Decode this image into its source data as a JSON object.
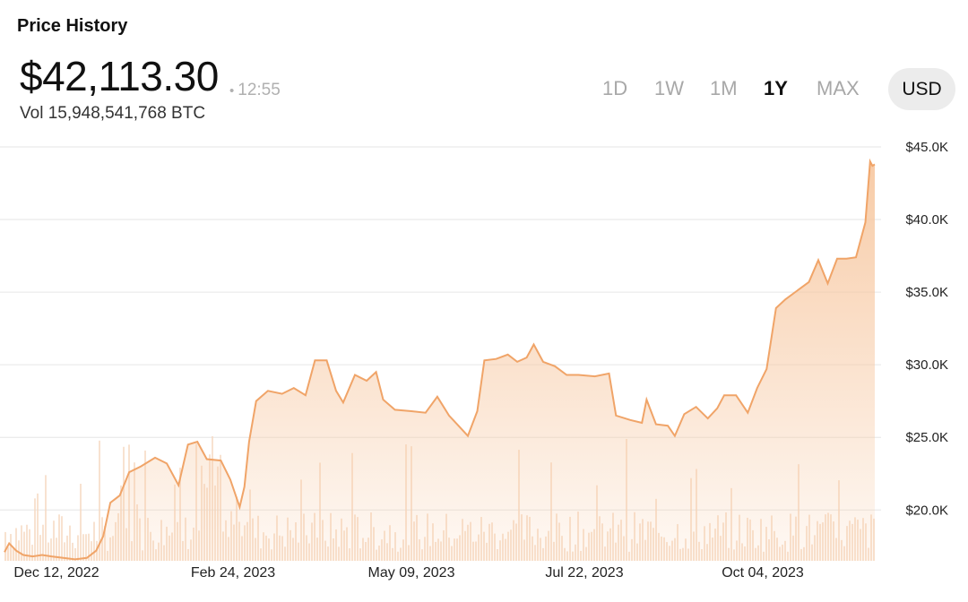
{
  "header": {
    "title": "Price History",
    "price": "$42,113.30",
    "time": "12:55",
    "time_dot": "•",
    "volume": "Vol 15,948,541,768 BTC"
  },
  "ranges": [
    {
      "label": "1D",
      "active": false
    },
    {
      "label": "1W",
      "active": false
    },
    {
      "label": "1M",
      "active": false
    },
    {
      "label": "1Y",
      "active": true
    },
    {
      "label": "MAX",
      "active": false
    }
  ],
  "currency": "USD",
  "colors": {
    "line": "#f0a468",
    "fill_top": "#f7c9a3",
    "volume": "#f6d8c0",
    "grid": "#e6e6e6"
  },
  "chart_data": {
    "type": "area",
    "title": "",
    "xlabel": "",
    "ylabel": "",
    "ylim": [
      16500,
      45000
    ],
    "xlim": [
      "2022-11-30",
      "2023-12-05"
    ],
    "y_ticks": [
      "$20.0K",
      "$25.0K",
      "$30.0K",
      "$35.0K",
      "$40.0K",
      "$45.0K"
    ],
    "x_ticks": [
      "Dec 12, 2022",
      "Feb 24, 2023",
      "May 09, 2023",
      "Jul 22, 2023",
      "Oct 04, 2023"
    ],
    "grid": true,
    "series": [
      {
        "values": [
          [
            "2022-11-30",
            17100
          ],
          [
            "2022-12-02",
            17700
          ],
          [
            "2022-12-05",
            17200
          ],
          [
            "2022-12-08",
            16900
          ],
          [
            "2022-12-12",
            16800
          ],
          [
            "2022-12-16",
            16900
          ],
          [
            "2022-12-20",
            16800
          ],
          [
            "2022-12-25",
            16700
          ],
          [
            "2022-12-30",
            16600
          ],
          [
            "2023-01-04",
            16700
          ],
          [
            "2023-01-08",
            17200
          ],
          [
            "2023-01-11",
            18200
          ],
          [
            "2023-01-14",
            20500
          ],
          [
            "2023-01-18",
            21000
          ],
          [
            "2023-01-22",
            22600
          ],
          [
            "2023-01-27",
            23000
          ],
          [
            "2023-02-02",
            23600
          ],
          [
            "2023-02-07",
            23200
          ],
          [
            "2023-02-12",
            21700
          ],
          [
            "2023-02-16",
            24500
          ],
          [
            "2023-02-20",
            24700
          ],
          [
            "2023-02-24",
            23500
          ],
          [
            "2023-03-02",
            23400
          ],
          [
            "2023-03-06",
            22100
          ],
          [
            "2023-03-10",
            20200
          ],
          [
            "2023-03-12",
            21600
          ],
          [
            "2023-03-14",
            24700
          ],
          [
            "2023-03-17",
            27500
          ],
          [
            "2023-03-22",
            28200
          ],
          [
            "2023-03-28",
            28000
          ],
          [
            "2023-04-02",
            28400
          ],
          [
            "2023-04-07",
            27900
          ],
          [
            "2023-04-11",
            30300
          ],
          [
            "2023-04-16",
            30300
          ],
          [
            "2023-04-20",
            28200
          ],
          [
            "2023-04-23",
            27400
          ],
          [
            "2023-04-28",
            29300
          ],
          [
            "2023-05-03",
            28900
          ],
          [
            "2023-05-07",
            29500
          ],
          [
            "2023-05-10",
            27600
          ],
          [
            "2023-05-15",
            26900
          ],
          [
            "2023-05-22",
            26800
          ],
          [
            "2023-05-28",
            26700
          ],
          [
            "2023-06-02",
            27800
          ],
          [
            "2023-06-07",
            26500
          ],
          [
            "2023-06-11",
            25800
          ],
          [
            "2023-06-15",
            25100
          ],
          [
            "2023-06-19",
            26800
          ],
          [
            "2023-06-22",
            30300
          ],
          [
            "2023-06-27",
            30400
          ],
          [
            "2023-07-02",
            30700
          ],
          [
            "2023-07-06",
            30200
          ],
          [
            "2023-07-10",
            30500
          ],
          [
            "2023-07-13",
            31400
          ],
          [
            "2023-07-17",
            30200
          ],
          [
            "2023-07-22",
            29900
          ],
          [
            "2023-07-27",
            29300
          ],
          [
            "2023-08-01",
            29300
          ],
          [
            "2023-08-08",
            29200
          ],
          [
            "2023-08-14",
            29400
          ],
          [
            "2023-08-17",
            26500
          ],
          [
            "2023-08-23",
            26200
          ],
          [
            "2023-08-28",
            26000
          ],
          [
            "2023-08-30",
            27600
          ],
          [
            "2023-09-03",
            25900
          ],
          [
            "2023-09-08",
            25800
          ],
          [
            "2023-09-11",
            25100
          ],
          [
            "2023-09-15",
            26600
          ],
          [
            "2023-09-20",
            27100
          ],
          [
            "2023-09-25",
            26300
          ],
          [
            "2023-09-29",
            27000
          ],
          [
            "2023-10-02",
            27900
          ],
          [
            "2023-10-07",
            27900
          ],
          [
            "2023-10-12",
            26700
          ],
          [
            "2023-10-16",
            28400
          ],
          [
            "2023-10-20",
            29700
          ],
          [
            "2023-10-24",
            33900
          ],
          [
            "2023-10-28",
            34500
          ],
          [
            "2023-11-02",
            35100
          ],
          [
            "2023-11-07",
            35700
          ],
          [
            "2023-11-11",
            37200
          ],
          [
            "2023-11-15",
            35600
          ],
          [
            "2023-11-19",
            37300
          ],
          [
            "2023-11-23",
            37300
          ],
          [
            "2023-11-27",
            37400
          ],
          [
            "2023-12-01",
            39800
          ],
          [
            "2023-12-03",
            44000
          ],
          [
            "2023-12-04",
            43700
          ],
          [
            "2023-12-05",
            43800
          ]
        ]
      }
    ]
  }
}
